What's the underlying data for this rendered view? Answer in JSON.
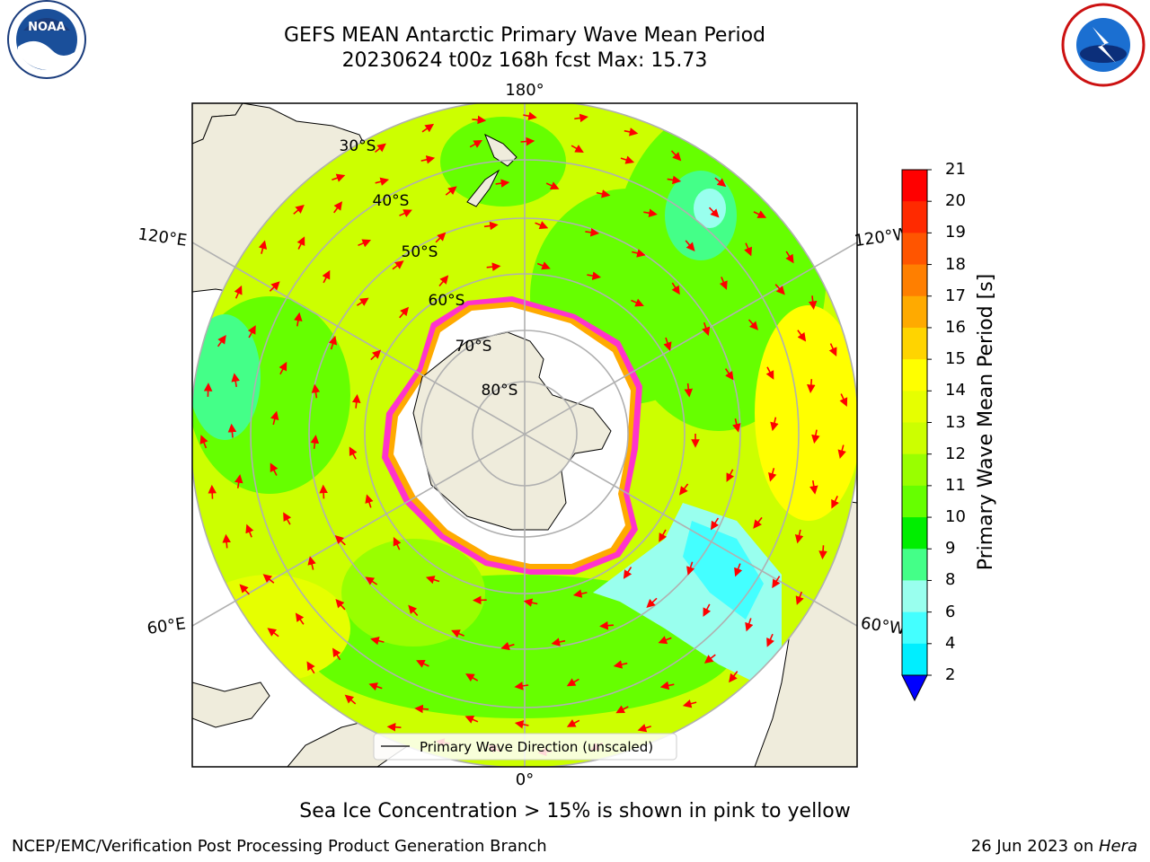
{
  "title": {
    "line1": "GEFS MEAN Antarctic Primary Wave Mean Period",
    "line2": "20230624 t00z 168h fcst   Max: 15.73"
  },
  "map": {
    "projection": "south-polar stereographic",
    "longitude_labels": {
      "top": "180°",
      "bottom": "0°",
      "upper_left": "120°E",
      "upper_right": "120°W",
      "lower_left": "60°E",
      "lower_right": "60°W"
    },
    "latitude_labels": [
      "30°S",
      "40°S",
      "50°S",
      "60°S",
      "70°S",
      "80°S"
    ],
    "legend_text": "Primary Wave Direction (unscaled)",
    "arrow_color": "#ff0000",
    "land_color": "#efecdc",
    "ice_edge_colors": [
      "#ff33cc",
      "#ffaa00",
      "#ffff66"
    ]
  },
  "colorbar": {
    "title": "Primary Wave Mean Period [s]",
    "levels": [
      "21",
      "20",
      "19",
      "18",
      "17",
      "16",
      "15",
      "14",
      "13",
      "12",
      "11",
      "10",
      "9",
      "8",
      "6",
      "4",
      "2"
    ],
    "colors": [
      "#ff0000",
      "#ff2a00",
      "#ff5500",
      "#ff7f00",
      "#ffaa00",
      "#ffd400",
      "#ffff00",
      "#e6ff00",
      "#ccff00",
      "#99ff00",
      "#66ff00",
      "#00ee00",
      "#44ff88",
      "#99ffee",
      "#44ffff",
      "#00eeff",
      "#0088ff",
      "#0000ff"
    ]
  },
  "subnote": "Sea Ice Concentration > 15% is shown in pink to yellow",
  "footer": {
    "left": "NCEP/EMC/Verification Post Processing Product Generation Branch",
    "right_prefix": "26 Jun 2023 on ",
    "right_machine": "Hera"
  },
  "logos": {
    "left": "noaa-logo",
    "right": "nws-logo"
  }
}
